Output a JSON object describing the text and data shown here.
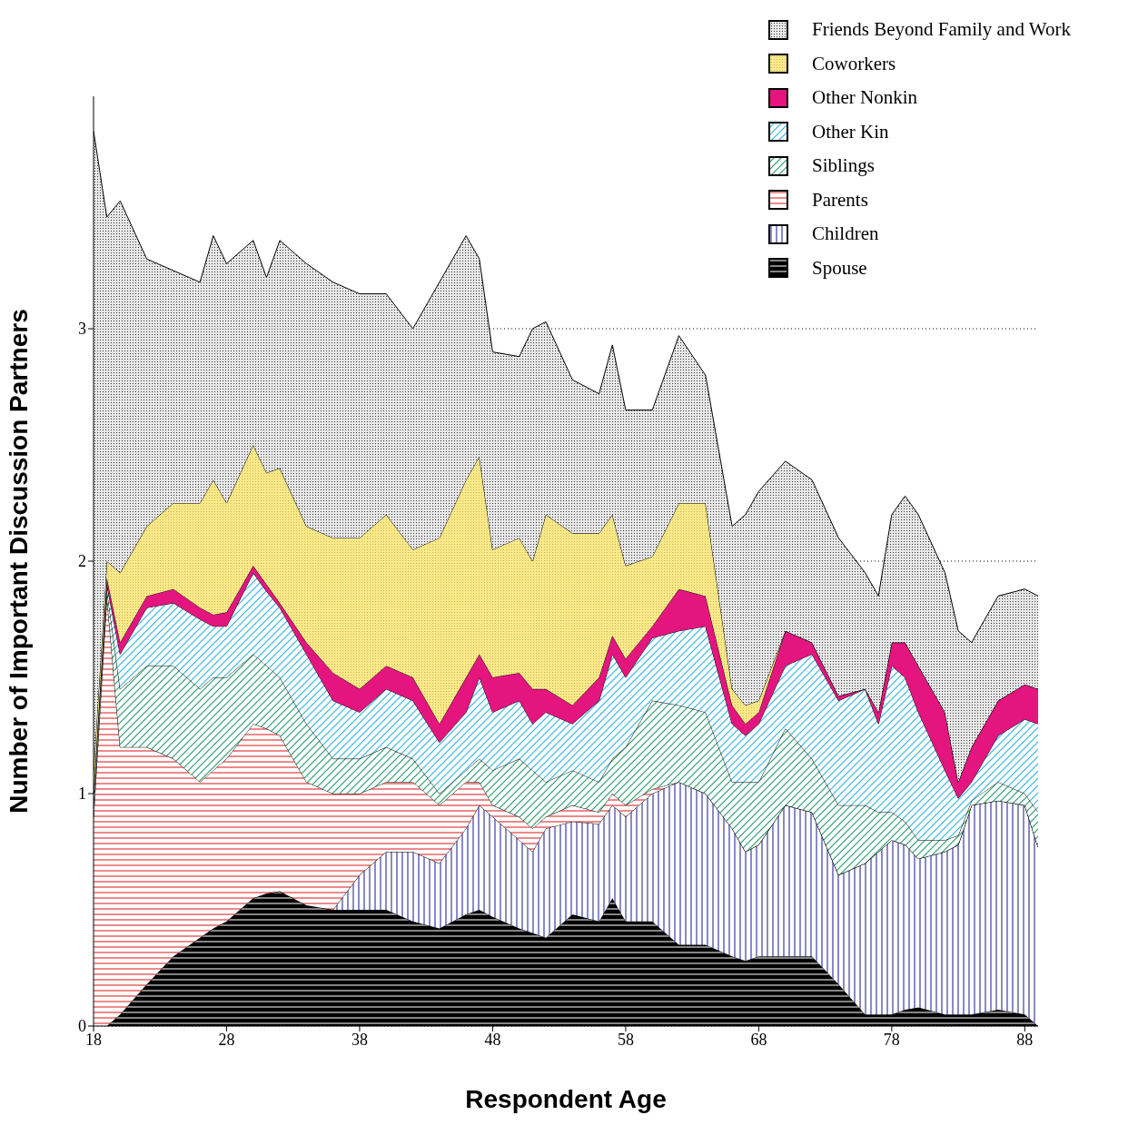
{
  "chart_data": {
    "type": "area",
    "stacked": true,
    "xlabel": "Respondent Age",
    "ylabel": "Number of Important Discussion Partners",
    "x": [
      18,
      19,
      20,
      22,
      24,
      26,
      27,
      28,
      30,
      31,
      32,
      34,
      36,
      38,
      40,
      42,
      44,
      46,
      47,
      48,
      50,
      51,
      52,
      54,
      56,
      57,
      58,
      60,
      62,
      64,
      66,
      67,
      68,
      70,
      72,
      74,
      76,
      77,
      78,
      79,
      80,
      82,
      83,
      84,
      86,
      88,
      89
    ],
    "series": [
      {
        "name": "Spouse",
        "color": "#333333",
        "values": [
          0,
          0,
          0.05,
          0.18,
          0.3,
          0.38,
          0.42,
          0.45,
          0.55,
          0.57,
          0.58,
          0.52,
          0.5,
          0.5,
          0.5,
          0.45,
          0.42,
          0.48,
          0.5,
          0.47,
          0.42,
          0.4,
          0.38,
          0.48,
          0.45,
          0.55,
          0.45,
          0.45,
          0.35,
          0.35,
          0.3,
          0.28,
          0.3,
          0.3,
          0.3,
          0.18,
          0.05,
          0.05,
          0.05,
          0.07,
          0.08,
          0.05,
          0.05,
          0.05,
          0.07,
          0.05,
          0
        ]
      },
      {
        "name": "Children",
        "color": "#3a3aa0",
        "values": [
          0,
          0,
          0,
          0,
          0,
          0,
          0,
          0,
          0,
          0,
          0,
          0,
          0,
          0.15,
          0.25,
          0.3,
          0.28,
          0.37,
          0.45,
          0.43,
          0.38,
          0.35,
          0.47,
          0.4,
          0.42,
          0.4,
          0.45,
          0.55,
          0.7,
          0.65,
          0.55,
          0.47,
          0.48,
          0.65,
          0.62,
          0.47,
          0.65,
          0.7,
          0.75,
          0.71,
          0.64,
          0.7,
          0.73,
          0.9,
          0.9,
          0.9,
          0.77
        ]
      },
      {
        "name": "Parents",
        "color": "#e23b3b",
        "values": [
          0.9,
          1.85,
          1.15,
          1.02,
          0.85,
          0.67,
          0.68,
          0.7,
          0.75,
          0.71,
          0.67,
          0.53,
          0.5,
          0.35,
          0.3,
          0.3,
          0.25,
          0.2,
          0.1,
          0.05,
          0.1,
          0.1,
          0.05,
          0.07,
          0.05,
          0.05,
          0.05,
          0.02,
          0,
          0,
          0,
          0,
          0,
          0,
          0,
          0,
          0,
          0,
          0,
          0,
          0,
          0,
          0,
          0,
          0,
          0,
          0
        ]
      },
      {
        "name": "Siblings",
        "color": "#2a9d6a",
        "values": [
          0.05,
          0.03,
          0.25,
          0.35,
          0.4,
          0.4,
          0.4,
          0.35,
          0.3,
          0.27,
          0.25,
          0.25,
          0.15,
          0.15,
          0.15,
          0.1,
          0.05,
          0.05,
          0.1,
          0.15,
          0.25,
          0.25,
          0.15,
          0.15,
          0.13,
          0.15,
          0.25,
          0.38,
          0.33,
          0.35,
          0.2,
          0.3,
          0.27,
          0.33,
          0.23,
          0.3,
          0.25,
          0.17,
          0.12,
          0.1,
          0.08,
          0.05,
          0.04,
          0.02,
          0.08,
          0.05,
          0.15
        ]
      },
      {
        "name": "Other Kin",
        "color": "#33b5e5",
        "values": [
          0.05,
          0.02,
          0.15,
          0.25,
          0.27,
          0.3,
          0.22,
          0.22,
          0.35,
          0.32,
          0.3,
          0.3,
          0.25,
          0.2,
          0.25,
          0.25,
          0.22,
          0.25,
          0.35,
          0.25,
          0.25,
          0.2,
          0.3,
          0.2,
          0.35,
          0.45,
          0.3,
          0.27,
          0.32,
          0.37,
          0.25,
          0.2,
          0.25,
          0.27,
          0.45,
          0.45,
          0.5,
          0.38,
          0.63,
          0.62,
          0.55,
          0.3,
          0.16,
          0.08,
          0.2,
          0.32,
          0.38
        ]
      },
      {
        "name": "Other Nonkin",
        "color": "#e4157f",
        "values": [
          0,
          0.03,
          0.05,
          0.05,
          0.06,
          0.05,
          0.05,
          0.06,
          0.03,
          0.03,
          0.02,
          0.05,
          0.12,
          0.1,
          0.1,
          0.1,
          0.08,
          0.15,
          0.1,
          0.15,
          0.12,
          0.15,
          0.1,
          0.08,
          0.1,
          0.08,
          0.08,
          0.05,
          0.18,
          0.13,
          0.08,
          0.05,
          0.05,
          0.15,
          0.05,
          0.02,
          0,
          0.05,
          0.1,
          0.15,
          0.2,
          0.25,
          0.07,
          0.15,
          0.15,
          0.15,
          0.15
        ]
      },
      {
        "name": "Coworkers",
        "color": "#fce98a",
        "values": [
          0.1,
          0.07,
          0.3,
          0.3,
          0.37,
          0.45,
          0.58,
          0.47,
          0.52,
          0.48,
          0.58,
          0.5,
          0.58,
          0.65,
          0.65,
          0.55,
          0.8,
          0.85,
          0.85,
          0.55,
          0.58,
          0.55,
          0.75,
          0.74,
          0.62,
          0.52,
          0.4,
          0.3,
          0.37,
          0.4,
          0.07,
          0.08,
          0.05,
          0,
          0,
          0,
          0,
          0,
          0,
          0,
          0,
          0,
          0,
          0,
          0,
          0,
          0
        ]
      },
      {
        "name": "Friends Beyond Family and Work",
        "color": "#9a9a9a",
        "values": [
          2.75,
          1.48,
          1.6,
          1.15,
          1.0,
          0.95,
          1.05,
          1.03,
          0.88,
          0.84,
          0.98,
          1.13,
          1.1,
          1.05,
          0.95,
          0.95,
          1.1,
          1.05,
          0.85,
          0.85,
          0.78,
          1.0,
          0.83,
          0.66,
          0.6,
          0.73,
          0.67,
          0.63,
          0.72,
          0.55,
          0.7,
          0.82,
          0.9,
          0.73,
          0.7,
          0.68,
          0.5,
          0.5,
          0.55,
          0.63,
          0.65,
          0.6,
          0.65,
          0.45,
          0.45,
          0.41,
          0.4
        ]
      }
    ],
    "xlim": [
      18,
      89
    ],
    "xticks": [
      18,
      28,
      38,
      48,
      58,
      68,
      78,
      88
    ],
    "ylim": [
      0,
      4
    ],
    "yticks": [
      0,
      1,
      2,
      3
    ],
    "grid": "y",
    "legend": "top right"
  }
}
